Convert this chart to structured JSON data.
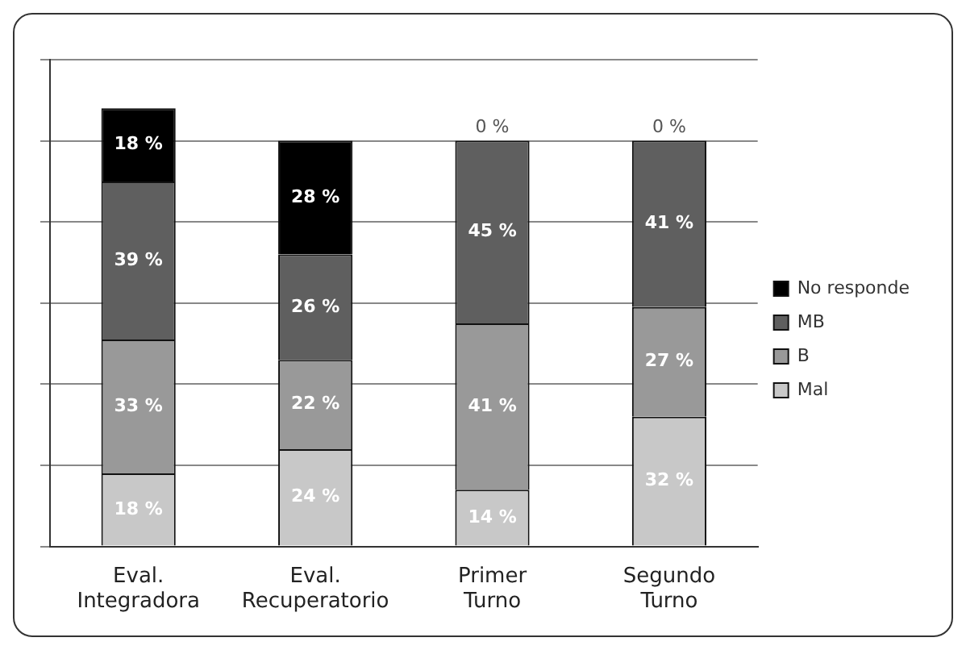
{
  "chart_data": {
    "type": "bar",
    "stacked": true,
    "categories": [
      "Eval. Integradora",
      "Eval. Recuperatorio",
      "Primer Turno",
      "Segundo Turno"
    ],
    "series": [
      {
        "name": "Mal",
        "color": "#c8c8c8",
        "values": [
          18,
          24,
          14,
          32
        ],
        "value_labels": [
          "18 %",
          "24 %",
          "14 %",
          "32 %"
        ]
      },
      {
        "name": "B",
        "color": "#999999",
        "values": [
          33,
          22,
          41,
          27
        ],
        "value_labels": [
          "33 %",
          "22 %",
          "41 %",
          "27 %"
        ]
      },
      {
        "name": "MB",
        "color": "#5f5f5f",
        "values": [
          39,
          26,
          45,
          41
        ],
        "value_labels": [
          "39 %",
          "26 %",
          "45 %",
          "41 %"
        ]
      },
      {
        "name": "No responde",
        "color": "#000000",
        "values": [
          18,
          28,
          0,
          0
        ],
        "value_labels": [
          "18 %",
          "28 %",
          "0 %",
          "0 %"
        ]
      }
    ],
    "tick_labels": "x",
    "grid": "y",
    "legend": "right"
  }
}
